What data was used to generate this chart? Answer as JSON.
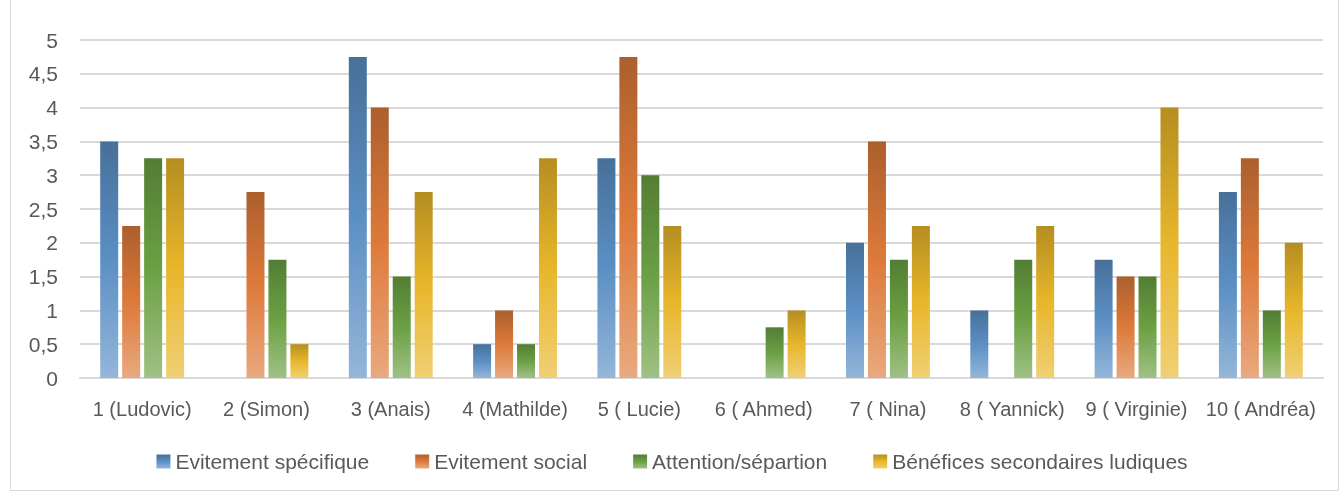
{
  "chart_data": {
    "type": "bar",
    "categories": [
      "1 (Ludovic)",
      "2 (Simon)",
      "3 (Anais)",
      "4 (Mathilde)",
      "5 ( Lucie)",
      "6 ( Ahmed)",
      "7 ( Nina)",
      "8 ( Yannick)",
      "9 ( Virginie)",
      "10 ( Andréa)"
    ],
    "series": [
      {
        "name": "Evitement spécifique",
        "color": "#5b8fc4",
        "values": [
          3.5,
          0,
          4.75,
          0.5,
          3.25,
          0,
          2,
          1,
          1.75,
          2.75
        ]
      },
      {
        "name": "Evitement social",
        "color": "#dd7a3a",
        "values": [
          2.25,
          2.75,
          4,
          1,
          4.75,
          0,
          3.5,
          0,
          1.5,
          3.25
        ]
      },
      {
        "name": "Attention/sépartion",
        "color": "#6ba043",
        "values": [
          3.25,
          1.75,
          1.5,
          0.5,
          3,
          0.75,
          1.75,
          1.75,
          1.5,
          1
        ]
      },
      {
        "name": "Bénéfices secondaires ludiques",
        "color": "#e8b62a",
        "values": [
          3.25,
          0.5,
          2.75,
          3.25,
          2.25,
          1,
          2.25,
          2.25,
          4,
          2
        ]
      }
    ],
    "ylim": [
      0,
      5
    ],
    "yticks": [
      0,
      {
        "value": 0.5,
        "label": "0,5"
      },
      1,
      {
        "value": 1.5,
        "label": "1,5"
      },
      2,
      {
        "value": 2.5,
        "label": "2,5"
      },
      3,
      {
        "value": 3.5,
        "label": "3,5"
      },
      4,
      {
        "value": 4.5,
        "label": "4,5"
      },
      5
    ],
    "grid": "y",
    "legend": "bottom"
  }
}
